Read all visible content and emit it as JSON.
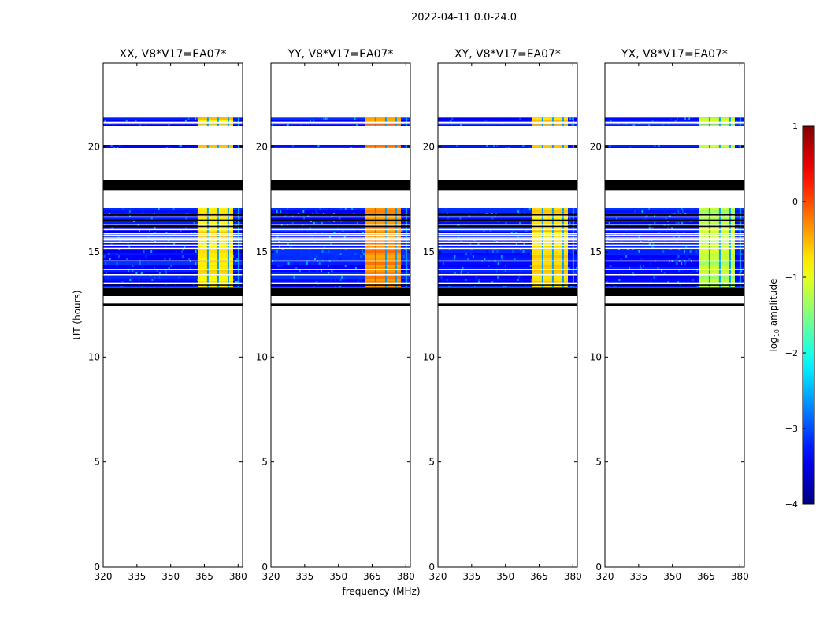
{
  "figure": {
    "suptitle": "2022-04-11 0.0-24.0"
  },
  "chart_data": {
    "type": "heatmap",
    "xlabel": "frequency (MHz)",
    "ylabel": "UT (hours)",
    "xlim": [
      320,
      382
    ],
    "ylim": [
      0,
      24
    ],
    "xticks": [
      "320",
      "335",
      "350",
      "365",
      "380"
    ],
    "xtick_values": [
      320,
      335,
      350,
      365,
      380
    ],
    "yticks": [
      "0",
      "5",
      "10",
      "15",
      "20"
    ],
    "ytick_values": [
      0,
      5,
      10,
      15,
      20
    ],
    "colorbar": {
      "label": "log10 amplitude",
      "label_main": "log",
      "label_sub": "10",
      "label_rest": " amplitude",
      "colormap": "jet",
      "range": [
        -4,
        1
      ],
      "ticks": [
        "1",
        "0",
        "−1",
        "−2",
        "−3",
        "−4"
      ],
      "tick_values": [
        1,
        0,
        -1,
        -2,
        -3,
        -4
      ]
    },
    "panels": [
      {
        "title": "XX, V8*V17=EA07*",
        "baseline": "XX",
        "band_level": -0.7
      },
      {
        "title": "YY, V8*V17=EA07*",
        "baseline": "YY",
        "band_level": -0.3
      },
      {
        "title": "XY, V8*V17=EA07*",
        "baseline": "XY",
        "band_level": -0.7
      },
      {
        "title": "YX, V8*V17=EA07*",
        "baseline": "YX",
        "band_level": -1.2
      }
    ],
    "data_ranges_hours": [
      {
        "from": 13.0,
        "to": 17.1,
        "kind": "data"
      },
      {
        "from": 19.95,
        "to": 20.1,
        "kind": "data"
      },
      {
        "from": 20.9,
        "to": 21.4,
        "kind": "data"
      }
    ],
    "flagged_ranges_hours": [
      {
        "from": 12.9,
        "to": 13.3
      },
      {
        "from": 12.45,
        "to": 12.55
      },
      {
        "from": 17.95,
        "to": 18.45
      }
    ],
    "bright_band_MHz": [
      362,
      382
    ],
    "background_level": -3.3
  }
}
